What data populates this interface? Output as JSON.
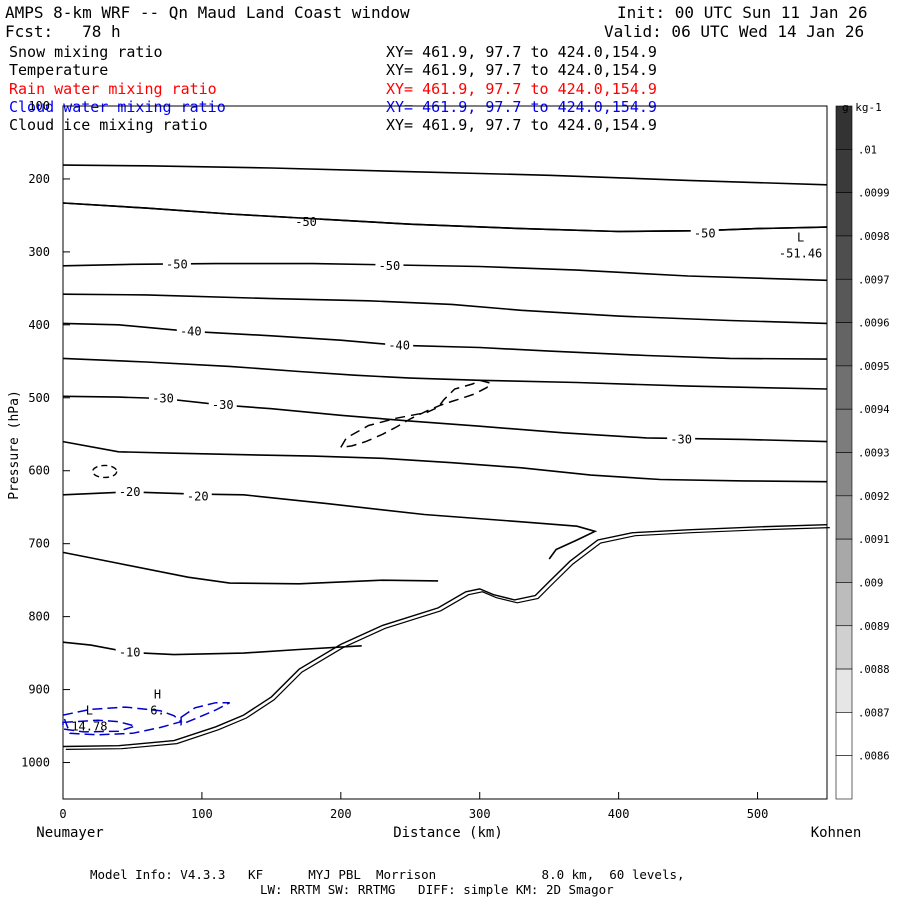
{
  "header": {
    "title": "AMPS 8-km WRF -- Qn Maud Land Coast window",
    "init": "Init: 00 UTC Sun 11 Jan 26",
    "fcst": "Fcst:   78 h",
    "valid": "Valid: 06 UTC Wed 14 Jan 26"
  },
  "fields": [
    {
      "name": "Snow mixing ratio",
      "xy": "XY= 461.9, 97.7 to 424.0,154.9",
      "color": "#000000"
    },
    {
      "name": "Temperature",
      "xy": "XY= 461.9, 97.7 to 424.0,154.9",
      "color": "#000000"
    },
    {
      "name": "Rain water mixing ratio",
      "xy": "XY= 461.9, 97.7 to 424.0,154.9",
      "color": "#ff0000"
    },
    {
      "name": "Cloud water mixing ratio",
      "xy": "XY= 461.9, 97.7 to 424.0,154.9",
      "color": "#0000ff"
    },
    {
      "name": "Cloud ice mixing ratio",
      "xy": "XY= 461.9, 97.7 to 424.0,154.9",
      "color": "#000000"
    }
  ],
  "chart_data": {
    "type": "cross-section contour",
    "ylabel": "Pressure (hPa)",
    "xlabel": "Distance (km)",
    "x_left_label": "Neumayer",
    "x_right_label": "Kohnen",
    "xlim": [
      0,
      550
    ],
    "ylim": [
      1050,
      100
    ],
    "x_ticks": [
      0,
      100,
      200,
      300,
      400,
      500
    ],
    "y_ticks": [
      100,
      200,
      300,
      400,
      500,
      600,
      700,
      800,
      900,
      1000
    ],
    "temperature_contours": [
      {
        "label": "",
        "points": [
          [
            0,
            181
          ],
          [
            60,
            182
          ],
          [
            150,
            185
          ],
          [
            250,
            190
          ],
          [
            350,
            195
          ],
          [
            450,
            202
          ],
          [
            550,
            208
          ]
        ]
      },
      {
        "label": "-50",
        "label_at": [
          175,
          259
        ],
        "points": [
          [
            0,
            233
          ],
          [
            60,
            240
          ],
          [
            120,
            248
          ],
          [
            175,
            254
          ],
          [
            250,
            262
          ],
          [
            330,
            268
          ],
          [
            400,
            272
          ],
          [
            460,
            271
          ],
          [
            500,
            268
          ],
          [
            550,
            266
          ]
        ]
      },
      {
        "label": "-50",
        "label_at": [
          462,
          275
        ],
        "points": [
          [
            0,
            233
          ],
          [
            60,
            240
          ],
          [
            120,
            248
          ],
          [
            175,
            254
          ],
          [
            250,
            262
          ],
          [
            330,
            268
          ],
          [
            400,
            272
          ],
          [
            460,
            271
          ],
          [
            500,
            268
          ],
          [
            550,
            266
          ]
        ]
      },
      {
        "label": "-50",
        "label_at": [
          82,
          317
        ],
        "points": [
          [
            0,
            319
          ],
          [
            50,
            317
          ],
          [
            110,
            316
          ],
          [
            180,
            316
          ],
          [
            240,
            318
          ],
          [
            300,
            320
          ],
          [
            370,
            325
          ],
          [
            450,
            333
          ],
          [
            550,
            339
          ]
        ]
      },
      {
        "label": "-50",
        "label_at": [
          235,
          319
        ],
        "points": []
      },
      {
        "label": "",
        "points": [
          [
            0,
            358
          ],
          [
            60,
            359
          ],
          [
            150,
            364
          ],
          [
            220,
            367
          ],
          [
            280,
            372
          ],
          [
            330,
            380
          ],
          [
            400,
            388
          ],
          [
            480,
            394
          ],
          [
            550,
            398
          ]
        ]
      },
      {
        "label": "-40",
        "label_at": [
          92,
          409
        ],
        "points": [
          [
            0,
            398
          ],
          [
            40,
            400
          ],
          [
            92,
            409
          ],
          [
            150,
            415
          ],
          [
            200,
            421
          ],
          [
            242,
            428
          ],
          [
            300,
            431
          ],
          [
            350,
            436
          ],
          [
            420,
            442
          ],
          [
            480,
            446
          ],
          [
            550,
            447
          ]
        ]
      },
      {
        "label": "-40",
        "label_at": [
          242,
          428
        ],
        "points": []
      },
      {
        "label": "",
        "points": [
          [
            0,
            446
          ],
          [
            60,
            451
          ],
          [
            120,
            457
          ],
          [
            170,
            464
          ],
          [
            210,
            469
          ],
          [
            250,
            473
          ],
          [
            300,
            476
          ],
          [
            370,
            479
          ],
          [
            450,
            484
          ],
          [
            550,
            488
          ]
        ]
      },
      {
        "label": "-30",
        "label_at": [
          72,
          501
        ],
        "points": [
          [
            0,
            498
          ],
          [
            40,
            499
          ],
          [
            72,
            501
          ],
          [
            115,
            510
          ],
          [
            150,
            515
          ],
          [
            200,
            524
          ],
          [
            250,
            532
          ],
          [
            300,
            539
          ],
          [
            360,
            548
          ],
          [
            420,
            555
          ],
          [
            490,
            557
          ],
          [
            550,
            560
          ]
        ]
      },
      {
        "label": "-30",
        "label_at": [
          115,
          510
        ],
        "points": []
      },
      {
        "label": "-30",
        "label_at": [
          445,
          557
        ],
        "points": []
      },
      {
        "label": "",
        "points": [
          [
            0,
            560
          ],
          [
            40,
            574
          ],
          [
            80,
            576
          ],
          [
            130,
            578
          ],
          [
            180,
            580
          ],
          [
            230,
            583
          ],
          [
            280,
            589
          ],
          [
            330,
            596
          ],
          [
            380,
            606
          ],
          [
            430,
            612
          ],
          [
            490,
            614
          ],
          [
            550,
            615
          ]
        ]
      },
      {
        "label": "-20",
        "label_at": [
          48,
          629
        ],
        "points": [
          [
            0,
            633
          ],
          [
            48,
            629
          ],
          [
            95,
            632
          ],
          [
            130,
            633
          ],
          [
            190,
            645
          ],
          [
            260,
            660
          ],
          [
            330,
            670
          ],
          [
            370,
            676
          ],
          [
            383,
            683
          ],
          [
            370,
            695
          ],
          [
            355,
            708
          ],
          [
            350,
            721
          ]
        ]
      },
      {
        "label": "-20",
        "label_at": [
          97,
          635
        ],
        "points": []
      },
      {
        "label": "",
        "points": [
          [
            0,
            712
          ],
          [
            40,
            727
          ],
          [
            90,
            746
          ],
          [
            120,
            754
          ],
          [
            170,
            755
          ],
          [
            230,
            750
          ],
          [
            270,
            751
          ]
        ]
      },
      {
        "label": "-10",
        "label_at": [
          48,
          849
        ],
        "points": [
          [
            0,
            835
          ],
          [
            20,
            839
          ],
          [
            48,
            849
          ],
          [
            80,
            852
          ],
          [
            130,
            850
          ],
          [
            170,
            845
          ],
          [
            215,
            840
          ]
        ]
      }
    ],
    "terrain_pressure_hPa": [
      [
        0,
        978
      ],
      [
        40,
        977
      ],
      [
        80,
        970
      ],
      [
        110,
        951
      ],
      [
        130,
        935
      ],
      [
        150,
        910
      ],
      [
        170,
        872
      ],
      [
        200,
        838
      ],
      [
        230,
        812
      ],
      [
        270,
        788
      ],
      [
        290,
        766
      ],
      [
        300,
        762
      ],
      [
        310,
        770
      ],
      [
        325,
        777
      ],
      [
        340,
        771
      ],
      [
        350,
        752
      ],
      [
        365,
        724
      ],
      [
        385,
        695
      ],
      [
        410,
        685
      ],
      [
        450,
        681
      ],
      [
        500,
        677
      ],
      [
        550,
        674
      ]
    ],
    "annotations": [
      {
        "text": "L",
        "value": "-51.46",
        "x": 531,
        "y_hPa": 297
      },
      {
        "text": "H",
        "value": "6.",
        "x": 68,
        "y_hPa": 923
      },
      {
        "text": "L",
        "value": "14.78",
        "x": 19,
        "y_hPa": 945
      }
    ],
    "snow_mixing_ratio_dashed_contours": "closed contours near 200-250 km, 480-570 hPa; small contour near 20-40 km, 600 hPa",
    "cloud_water_dashed_contours": "blue dashed contours near surface, 0-110 km, 915-960 hPa",
    "colorbar": {
      "units": "g kg-1",
      "labels": [
        ".01",
        ".0099",
        ".0098",
        ".0097",
        ".0096",
        ".0095",
        ".0094",
        ".0093",
        ".0092",
        ".0091",
        ".009",
        ".0089",
        ".0088",
        ".0087",
        ".0086"
      ],
      "colors": [
        "#333333",
        "#3a3a3a",
        "#444444",
        "#4e4e4e",
        "#585858",
        "#646464",
        "#707070",
        "#7c7c7c",
        "#888888",
        "#969696",
        "#a8a8a8",
        "#bcbcbc",
        "#d0d0d0",
        "#e6e6e6",
        "#ffffff",
        "#ffffff"
      ]
    }
  },
  "footer": {
    "line1": "Model Info: V4.3.3   KF      MYJ PBL  Morrison              8.0 km,  60 levels,",
    "line2": "LW: RRTM SW: RRTMG   DIFF: simple KM: 2D Smagor"
  }
}
